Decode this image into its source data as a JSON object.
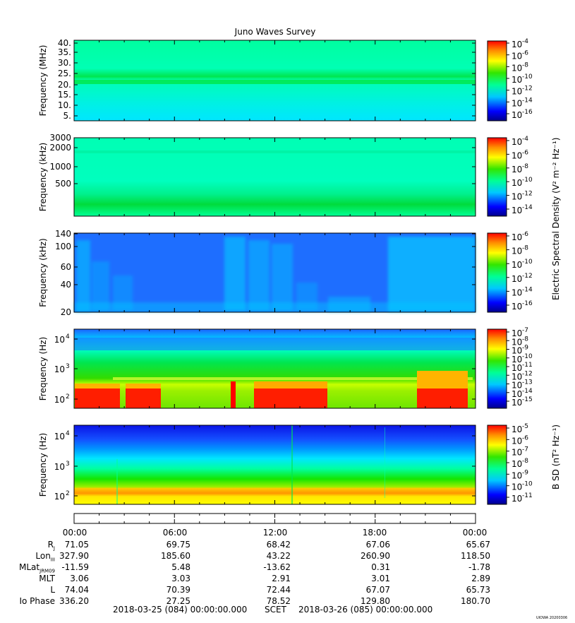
{
  "title": "Juno Waves Survey",
  "stamp": "UIOWA 20200306",
  "colorbar_labels": {
    "electric": "Electric Spectral Density (V² m⁻² Hz⁻¹)",
    "magnetic": "B SD (nT² Hz⁻¹)"
  },
  "panels": [
    {
      "ylabel": "Frequency (MHz)",
      "ticks": [
        "40.",
        "35.",
        "30.",
        "25.",
        "20.",
        "15.",
        "10.",
        "5."
      ],
      "cb_ticks": [
        "-4",
        "-6",
        "-8",
        "-10",
        "-12",
        "-14",
        "-16"
      ]
    },
    {
      "ylabel": "Frequency (kHz)",
      "ticks": [
        "3000",
        "2000",
        "1000",
        "500"
      ],
      "cb_ticks": [
        "-4",
        "-6",
        "-8",
        "-10",
        "-12",
        "-14"
      ]
    },
    {
      "ylabel": "Frequency (kHz)",
      "ticks": [
        "140",
        "100",
        "60",
        "40",
        "20"
      ],
      "cb_ticks": [
        "-6",
        "-8",
        "-10",
        "-12",
        "-14",
        "-16"
      ]
    },
    {
      "ylabel": "Frequency (Hz)",
      "ticks": [
        "4",
        "3",
        "2"
      ],
      "cb_ticks": [
        "-7",
        "-8",
        "-9",
        "-10",
        "-11",
        "-12",
        "-13",
        "-14",
        "-15"
      ]
    },
    {
      "ylabel": "Frequency (Hz)",
      "ticks": [
        "4",
        "3",
        "2"
      ],
      "cb_ticks": [
        "-5",
        "-6",
        "-7",
        "-8",
        "-9",
        "-10",
        "-11"
      ]
    }
  ],
  "chart_data": {
    "type": "heatmap",
    "title": "Juno Waves Survey",
    "x_tick_labels": [
      "00:00",
      "06:00",
      "12:00",
      "18:00",
      "00:00"
    ],
    "ephemeris": [
      {
        "label": "R",
        "sub": "J",
        "values": [
          "71.05",
          "69.75",
          "68.42",
          "67.06",
          "65.67"
        ]
      },
      {
        "label": "Lon",
        "sub": "III",
        "values": [
          "327.90",
          "185.60",
          "43.22",
          "260.90",
          "118.50"
        ]
      },
      {
        "label": "MLat",
        "sub": "JRM09",
        "values": [
          "-11.59",
          "5.48",
          "-13.62",
          "0.31",
          "-1.78"
        ]
      },
      {
        "label": "MLT",
        "sub": "",
        "values": [
          "3.06",
          "3.03",
          "2.91",
          "3.01",
          "2.89"
        ]
      },
      {
        "label": "L",
        "sub": "",
        "values": [
          "74.04",
          "70.39",
          "72.44",
          "67.07",
          "65.73"
        ]
      },
      {
        "label": "Io Phase",
        "sub": "",
        "values": [
          "336.20",
          "27.25",
          "78.52",
          "129.80",
          "180.70"
        ]
      }
    ],
    "footer": {
      "start": "2018-03-25 (084) 00:00:00.000",
      "scet": "SCET",
      "end": "2018-03-26 (085) 00:00:00.000"
    }
  }
}
